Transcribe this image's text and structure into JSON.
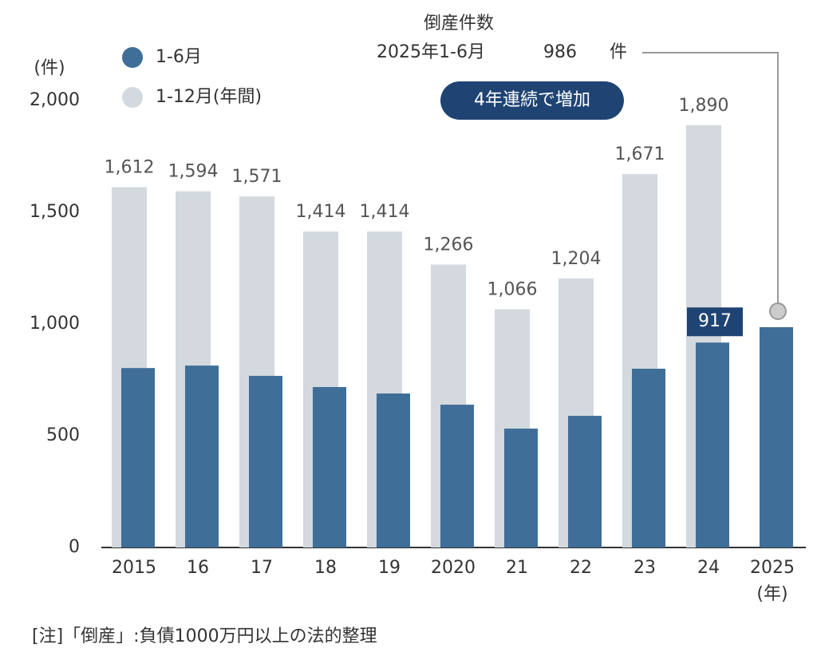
{
  "chart_data": {
    "type": "bar",
    "y_unit": "(件)",
    "x_unit": "(年)",
    "annotation": {
      "title": "倒産件数",
      "period": "2025年1-6月",
      "unit": "件",
      "badge": "4年連続で増加"
    },
    "note": "[注]「倒産」:負債1000万円以上の法的整理",
    "categories": [
      "2015",
      "16",
      "17",
      "18",
      "19",
      "2020",
      "21",
      "22",
      "23",
      "24",
      "2025"
    ],
    "series": [
      {
        "name": "1-6月",
        "color": "#3f6e98",
        "values": [
          803,
          814,
          768,
          718,
          689,
          639,
          532,
          589,
          800,
          917,
          986
        ]
      },
      {
        "name": "1-12月(年間)",
        "color": "#d3d9de",
        "values": [
          1612,
          1594,
          1571,
          1414,
          1414,
          1266,
          1066,
          1204,
          1671,
          1890,
          null
        ],
        "value_labels": [
          "1,612",
          "1,594",
          "1,571",
          "1,414",
          "1,414",
          "1,266",
          "1,066",
          "1,204",
          "1,671",
          "1,890",
          null
        ]
      }
    ],
    "ylim": [
      0,
      2000
    ],
    "yticks": [
      0,
      500,
      {
        "value": 1000,
        "label": "1,000"
      },
      {
        "value": 1500,
        "label": "1,500"
      },
      {
        "value": 2000,
        "label": "2,000"
      }
    ],
    "grid": false
  }
}
